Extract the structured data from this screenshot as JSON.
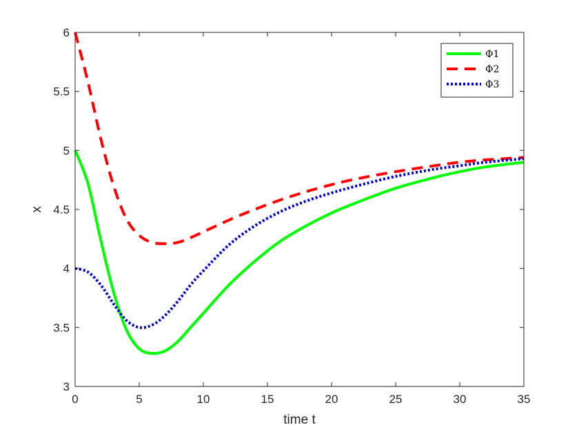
{
  "chart_data": {
    "type": "line",
    "title": "",
    "xlabel": "time t",
    "ylabel": "x",
    "xlim": [
      0,
      35
    ],
    "ylim": [
      3,
      6
    ],
    "xticks": [
      0,
      5,
      10,
      15,
      20,
      25,
      30,
      35
    ],
    "xtick_labels": [
      "0",
      "5",
      "10",
      "15",
      "20",
      "25",
      "30",
      "35"
    ],
    "yticks": [
      3,
      3.5,
      4,
      4.5,
      5,
      5.5,
      6
    ],
    "ytick_labels": [
      "3",
      "3.5",
      "4",
      "4.5",
      "5",
      "5.5",
      "6"
    ],
    "grid": false,
    "legend_position": "top-right",
    "series": [
      {
        "name": "Φ1",
        "color": "#00ff00",
        "style": "solid",
        "x": [
          0,
          1,
          2,
          3,
          4,
          5,
          6,
          7,
          8,
          9,
          10,
          12,
          14,
          16,
          18,
          20,
          22,
          25,
          28,
          30,
          32,
          35
        ],
        "y": [
          5.0,
          4.72,
          4.24,
          3.8,
          3.48,
          3.32,
          3.28,
          3.3,
          3.38,
          3.5,
          3.62,
          3.86,
          4.06,
          4.23,
          4.36,
          4.47,
          4.56,
          4.68,
          4.77,
          4.82,
          4.86,
          4.9
        ]
      },
      {
        "name": "Φ2",
        "color": "#ff0000",
        "style": "dashed",
        "x": [
          0,
          1,
          2,
          3,
          4,
          5,
          6,
          7,
          8,
          9,
          10,
          12,
          14,
          16,
          18,
          20,
          22,
          25,
          28,
          30,
          32,
          35
        ],
        "y": [
          6.0,
          5.58,
          5.1,
          4.7,
          4.42,
          4.28,
          4.22,
          4.21,
          4.22,
          4.26,
          4.31,
          4.41,
          4.5,
          4.58,
          4.65,
          4.71,
          4.76,
          4.82,
          4.87,
          4.9,
          4.92,
          4.94
        ]
      },
      {
        "name": "Φ3",
        "color": "#0000cc",
        "style": "dotted",
        "x": [
          0,
          1,
          2,
          3,
          4,
          5,
          6,
          7,
          8,
          9,
          10,
          12,
          14,
          16,
          18,
          20,
          22,
          25,
          28,
          30,
          32,
          35
        ],
        "y": [
          4.0,
          3.97,
          3.86,
          3.7,
          3.56,
          3.5,
          3.52,
          3.6,
          3.72,
          3.86,
          3.98,
          4.2,
          4.36,
          4.48,
          4.57,
          4.64,
          4.7,
          4.78,
          4.84,
          4.87,
          4.9,
          4.93
        ]
      }
    ]
  }
}
